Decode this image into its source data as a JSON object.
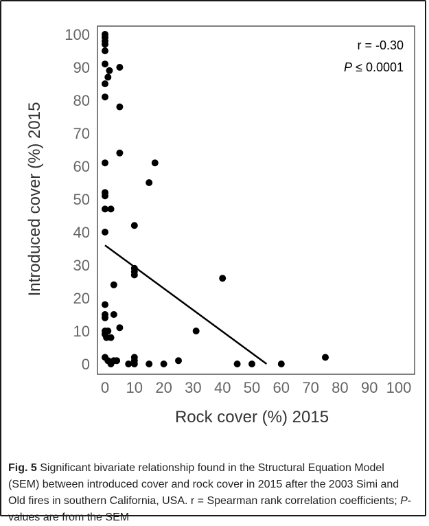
{
  "chart_data": {
    "type": "scatter",
    "xlabel": "Rock cover (%) 2015",
    "ylabel": "Introduced cover  (%) 2015",
    "xlim": [
      0,
      100
    ],
    "ylim": [
      0,
      100
    ],
    "x_ticks": [
      0,
      10,
      20,
      30,
      40,
      50,
      60,
      70,
      80,
      90,
      100
    ],
    "y_ticks": [
      0,
      10,
      20,
      30,
      40,
      50,
      60,
      70,
      80,
      90,
      100
    ],
    "grid": false,
    "points": [
      {
        "x": 0,
        "y": 100
      },
      {
        "x": 0,
        "y": 99
      },
      {
        "x": 0,
        "y": 98
      },
      {
        "x": 0,
        "y": 97
      },
      {
        "x": 0,
        "y": 95
      },
      {
        "x": 0,
        "y": 91
      },
      {
        "x": 0,
        "y": 85
      },
      {
        "x": 0,
        "y": 81
      },
      {
        "x": 1,
        "y": 87
      },
      {
        "x": 1.5,
        "y": 89
      },
      {
        "x": 5,
        "y": 90
      },
      {
        "x": 5,
        "y": 78
      },
      {
        "x": 5,
        "y": 64
      },
      {
        "x": 0,
        "y": 61
      },
      {
        "x": 17,
        "y": 61
      },
      {
        "x": 15,
        "y": 55
      },
      {
        "x": 0,
        "y": 52
      },
      {
        "x": 0,
        "y": 51
      },
      {
        "x": 0,
        "y": 47
      },
      {
        "x": 2,
        "y": 47
      },
      {
        "x": 10,
        "y": 42
      },
      {
        "x": 0,
        "y": 40
      },
      {
        "x": 10,
        "y": 29
      },
      {
        "x": 10,
        "y": 28
      },
      {
        "x": 10,
        "y": 27
      },
      {
        "x": 40,
        "y": 26
      },
      {
        "x": 3,
        "y": 24
      },
      {
        "x": 0,
        "y": 18
      },
      {
        "x": 0,
        "y": 15
      },
      {
        "x": 0,
        "y": 14
      },
      {
        "x": 3,
        "y": 15
      },
      {
        "x": 5,
        "y": 11
      },
      {
        "x": 31,
        "y": 10
      },
      {
        "x": 0,
        "y": 10
      },
      {
        "x": 0,
        "y": 9
      },
      {
        "x": 1,
        "y": 10
      },
      {
        "x": 0.5,
        "y": 8
      },
      {
        "x": 2,
        "y": 8
      },
      {
        "x": 0,
        "y": 2
      },
      {
        "x": 1,
        "y": 1
      },
      {
        "x": 2,
        "y": 0
      },
      {
        "x": 3,
        "y": 1
      },
      {
        "x": 4,
        "y": 1
      },
      {
        "x": 8,
        "y": 0
      },
      {
        "x": 10,
        "y": 0
      },
      {
        "x": 10,
        "y": 1
      },
      {
        "x": 10,
        "y": 2
      },
      {
        "x": 15,
        "y": 0
      },
      {
        "x": 20,
        "y": 0
      },
      {
        "x": 25,
        "y": 1
      },
      {
        "x": 45,
        "y": 0
      },
      {
        "x": 50,
        "y": 0
      },
      {
        "x": 60,
        "y": 0
      },
      {
        "x": 75,
        "y": 2
      }
    ],
    "trendline": {
      "x": [
        0,
        55
      ],
      "y": [
        36,
        0
      ]
    },
    "annotations": [
      "r = -0.30",
      "P ≤ 0.0001"
    ]
  },
  "caption": {
    "label": "Fig. 5",
    "text": " Significant bivariate relationship found in the Structural Equation Model (SEM) between introduced cover and rock cover in 2015 after the 2003 Simi and Old fires in southern California, USA. r = Spearman rank correlation coefficients; ",
    "p_italic": "P",
    "text_end": "-values are from the SEM"
  },
  "colors": {
    "points": "#000000",
    "axis": "#555555",
    "text": "#333333"
  }
}
